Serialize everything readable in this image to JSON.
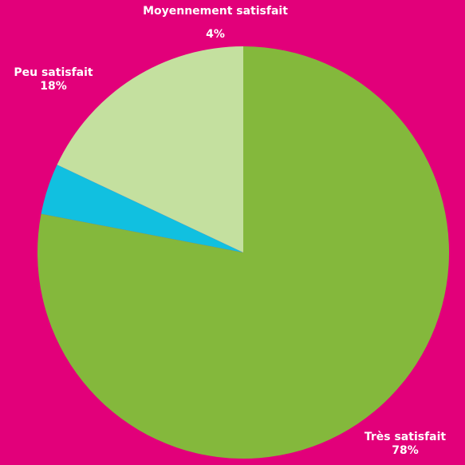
{
  "chart_data": {
    "type": "pie",
    "title": "",
    "slices": [
      {
        "name": "Très satisfait",
        "value": 78,
        "label": "78%",
        "color": "#84b83c"
      },
      {
        "name": "Moyennement satisfait",
        "value": 4,
        "label": "4%",
        "color": "#11c0e0"
      },
      {
        "name": "Peu satisfait",
        "value": 18,
        "label": "18%",
        "color": "#c4e09f"
      }
    ],
    "start": "top",
    "direction": "clockwise",
    "background_color": "#e2007a",
    "label_color": "#ffffff"
  }
}
